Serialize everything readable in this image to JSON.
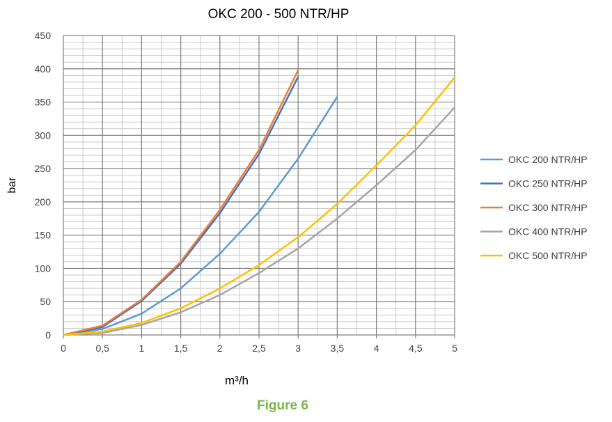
{
  "chart_data": {
    "type": "line",
    "title": "OKC 200 - 500 NTR/HP",
    "xlabel": "m³/h",
    "ylabel": "bar",
    "xlim": [
      0,
      5
    ],
    "ylim": [
      0,
      450
    ],
    "xticks": [
      "0",
      "0,5",
      "1",
      "1,5",
      "2",
      "2,5",
      "3",
      "3,5",
      "4",
      "4,5",
      "5"
    ],
    "yticks": [
      "0",
      "50",
      "100",
      "150",
      "200",
      "250",
      "300",
      "350",
      "400",
      "450"
    ],
    "grid": true,
    "legend_position": "right",
    "series": [
      {
        "name": "OKC 200 NTR/HP",
        "color": "#5b9bd5",
        "x": [
          0,
          0.5,
          1,
          1.5,
          2,
          2.5,
          3,
          3.5
        ],
        "y": [
          0,
          9,
          32,
          70,
          122,
          185,
          265,
          358
        ]
      },
      {
        "name": "OKC 250 NTR/HP",
        "color": "#4472c4",
        "x": [
          0,
          0.5,
          1,
          1.5,
          2,
          2.5,
          3
        ],
        "y": [
          0,
          12,
          51,
          107,
          183,
          272,
          388
        ]
      },
      {
        "name": "OKC 300 NTR/HP",
        "color": "#ed7d31",
        "x": [
          0,
          0.5,
          1,
          1.5,
          2,
          2.5,
          3
        ],
        "y": [
          0,
          14,
          53,
          110,
          188,
          278,
          398
        ]
      },
      {
        "name": "OKC 400 NTR/HP",
        "color": "#a5a5a5",
        "x": [
          0,
          0.5,
          1,
          1.5,
          2,
          2.5,
          3,
          3.5,
          4,
          4.5,
          5
        ],
        "y": [
          0,
          3,
          15,
          34,
          60,
          93,
          130,
          175,
          225,
          278,
          342
        ]
      },
      {
        "name": "OKC 500 NTR/HP",
        "color": "#ffc000",
        "x": [
          0,
          0.5,
          1,
          1.5,
          2,
          2.5,
          3,
          3.5,
          4,
          4.5,
          5
        ],
        "y": [
          0,
          5,
          18,
          40,
          70,
          105,
          147,
          197,
          255,
          315,
          387
        ]
      }
    ]
  },
  "caption": {
    "text": "Figure 6",
    "color": "#7ab648"
  }
}
